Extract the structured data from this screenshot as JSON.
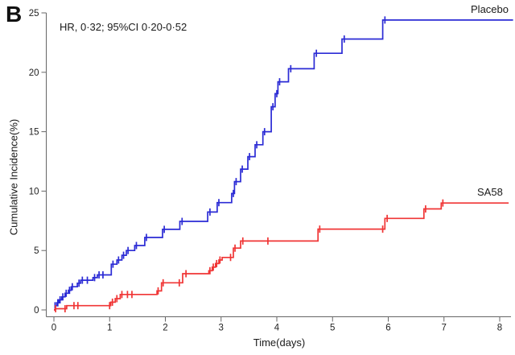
{
  "panel_label": "B",
  "annotation": "HR, 0·32; 95%CI 0·20-0·52",
  "chart_data": {
    "type": "line",
    "subtype": "kaplan-meier-cumulative-incidence-step",
    "title": "",
    "xlabel": "Time(days)",
    "ylabel": "Cumulative Incidence(%)",
    "xlim": [
      0,
      8.25
    ],
    "ylim": [
      0,
      25
    ],
    "xticks": [
      0,
      1,
      2,
      3,
      4,
      5,
      6,
      7,
      8
    ],
    "yticks": [
      0,
      5,
      10,
      15,
      20,
      25
    ],
    "grid": false,
    "legend_position": "curve-end-labels",
    "axis_color": "#666666",
    "tick_label_color": "#222222",
    "series": [
      {
        "name": "Placebo",
        "color": "#2b2bd5",
        "end_time": 8.24,
        "final_value": 24.4,
        "steps": [
          [
            0,
            0
          ],
          [
            0.02,
            0.35
          ],
          [
            0.05,
            0.6
          ],
          [
            0.09,
            0.85
          ],
          [
            0.14,
            1.1
          ],
          [
            0.2,
            1.4
          ],
          [
            0.26,
            1.65
          ],
          [
            0.31,
            1.95
          ],
          [
            0.42,
            2.25
          ],
          [
            0.48,
            2.5
          ],
          [
            0.7,
            2.72
          ],
          [
            0.78,
            2.95
          ],
          [
            1.03,
            3.85
          ],
          [
            1.13,
            4.2
          ],
          [
            1.22,
            4.6
          ],
          [
            1.3,
            5.0
          ],
          [
            1.45,
            5.42
          ],
          [
            1.63,
            6.1
          ],
          [
            1.95,
            6.78
          ],
          [
            2.26,
            7.45
          ],
          [
            2.76,
            8.24
          ],
          [
            2.93,
            9.03
          ],
          [
            3.19,
            9.8
          ],
          [
            3.24,
            10.8
          ],
          [
            3.35,
            11.85
          ],
          [
            3.48,
            12.9
          ],
          [
            3.61,
            13.9
          ],
          [
            3.75,
            15.0
          ],
          [
            3.9,
            17.1
          ],
          [
            3.97,
            18.2
          ],
          [
            4.02,
            19.2
          ],
          [
            4.21,
            20.3
          ],
          [
            4.67,
            21.6
          ],
          [
            5.17,
            22.8
          ],
          [
            5.9,
            24.4
          ]
        ],
        "censors": [
          [
            0.02,
            0.35
          ],
          [
            0.07,
            0.6
          ],
          [
            0.11,
            0.85
          ],
          [
            0.16,
            1.1
          ],
          [
            0.22,
            1.4
          ],
          [
            0.28,
            1.65
          ],
          [
            0.33,
            1.95
          ],
          [
            0.45,
            2.25
          ],
          [
            0.51,
            2.5
          ],
          [
            0.6,
            2.5
          ],
          [
            0.73,
            2.72
          ],
          [
            0.81,
            2.95
          ],
          [
            0.88,
            2.95
          ],
          [
            1.06,
            3.85
          ],
          [
            1.16,
            4.2
          ],
          [
            1.25,
            4.6
          ],
          [
            1.33,
            5.0
          ],
          [
            1.48,
            5.42
          ],
          [
            1.66,
            6.1
          ],
          [
            1.98,
            6.78
          ],
          [
            2.3,
            7.45
          ],
          [
            2.8,
            8.24
          ],
          [
            2.96,
            9.03
          ],
          [
            3.22,
            9.8
          ],
          [
            3.27,
            10.8
          ],
          [
            3.38,
            11.85
          ],
          [
            3.51,
            12.9
          ],
          [
            3.64,
            13.9
          ],
          [
            3.78,
            15.0
          ],
          [
            3.93,
            17.1
          ],
          [
            4.0,
            18.2
          ],
          [
            4.05,
            19.2
          ],
          [
            4.25,
            20.3
          ],
          [
            4.71,
            21.6
          ],
          [
            5.21,
            22.8
          ],
          [
            5.94,
            24.4
          ]
        ]
      },
      {
        "name": "SA58",
        "color": "#f03535",
        "end_time": 8.16,
        "final_value": 9.0,
        "steps": [
          [
            0,
            0
          ],
          [
            0.02,
            0.1
          ],
          [
            0.23,
            0.36
          ],
          [
            1.02,
            0.65
          ],
          [
            1.1,
            0.95
          ],
          [
            1.19,
            1.3
          ],
          [
            1.85,
            1.6
          ],
          [
            1.93,
            2.28
          ],
          [
            2.31,
            3.05
          ],
          [
            2.78,
            3.3
          ],
          [
            2.84,
            3.6
          ],
          [
            2.9,
            3.9
          ],
          [
            2.96,
            4.2
          ],
          [
            3.02,
            4.42
          ],
          [
            3.22,
            5.2
          ],
          [
            3.35,
            5.8
          ],
          [
            4.74,
            6.8
          ],
          [
            5.94,
            7.7
          ],
          [
            6.64,
            8.5
          ],
          [
            6.95,
            9.0
          ]
        ],
        "censors": [
          [
            0.03,
            0.1
          ],
          [
            0.2,
            0.1
          ],
          [
            0.36,
            0.36
          ],
          [
            0.43,
            0.36
          ],
          [
            1.0,
            0.36
          ],
          [
            1.05,
            0.65
          ],
          [
            1.13,
            0.95
          ],
          [
            1.22,
            1.3
          ],
          [
            1.32,
            1.3
          ],
          [
            1.4,
            1.3
          ],
          [
            1.87,
            1.6
          ],
          [
            1.96,
            2.28
          ],
          [
            2.25,
            2.28
          ],
          [
            2.37,
            3.05
          ],
          [
            2.8,
            3.3
          ],
          [
            2.86,
            3.6
          ],
          [
            2.92,
            3.9
          ],
          [
            2.98,
            4.2
          ],
          [
            3.17,
            4.42
          ],
          [
            3.25,
            5.2
          ],
          [
            3.39,
            5.8
          ],
          [
            3.84,
            5.8
          ],
          [
            4.77,
            6.8
          ],
          [
            5.9,
            6.8
          ],
          [
            5.98,
            7.7
          ],
          [
            6.67,
            8.5
          ],
          [
            6.98,
            9.0
          ]
        ]
      }
    ]
  }
}
